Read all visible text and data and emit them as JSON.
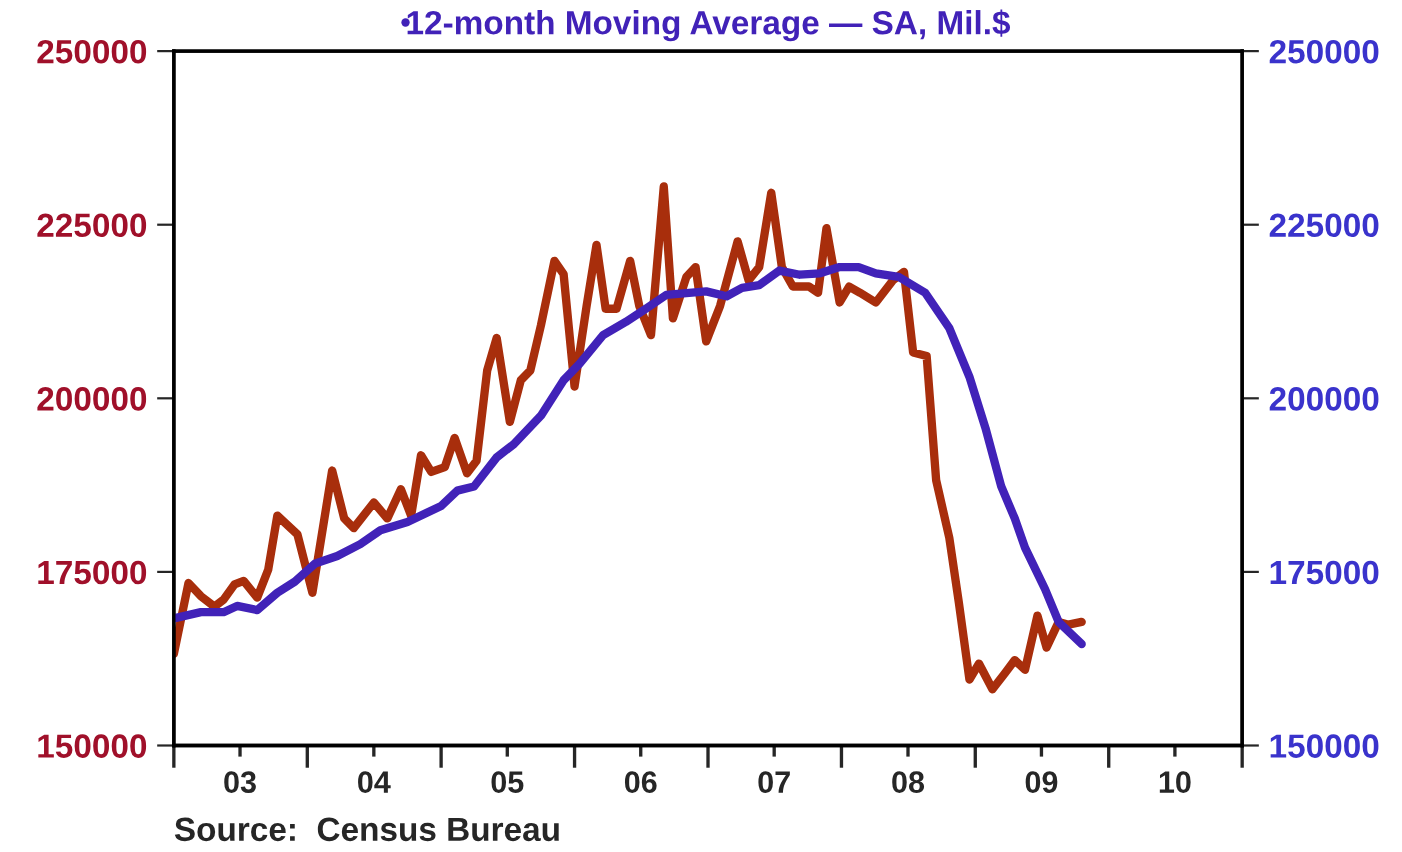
{
  "chart_data": {
    "type": "line",
    "annotations": [
      "Source:  Census Bureau"
    ],
    "xlim": [
      "2003-01-01",
      "2011-01-01"
    ],
    "xticks": [
      {
        "value": "2003-01-01",
        "label": null
      },
      {
        "value": "2003-07-01",
        "label": "03"
      },
      {
        "value": "2004-01-01",
        "label": null
      },
      {
        "value": "2004-07-01",
        "label": "04"
      },
      {
        "value": "2005-01-01",
        "label": null
      },
      {
        "value": "2005-07-01",
        "label": "05"
      },
      {
        "value": "2006-01-01",
        "label": null
      },
      {
        "value": "2006-07-01",
        "label": "06"
      },
      {
        "value": "2007-01-01",
        "label": null
      },
      {
        "value": "2007-07-01",
        "label": "07"
      },
      {
        "value": "2008-01-01",
        "label": null
      },
      {
        "value": "2008-07-01",
        "label": "08"
      },
      {
        "value": "2009-01-01",
        "label": null
      },
      {
        "value": "2009-07-01",
        "label": "09"
      },
      {
        "value": "2010-01-01",
        "label": null
      },
      {
        "value": "2010-07-01",
        "label": "10"
      },
      {
        "value": "2011-01-01",
        "label": null
      }
    ],
    "ylim": [
      150000,
      250000
    ],
    "yticks": [
      150000,
      175000,
      200000,
      225000,
      250000
    ],
    "y2lim": [
      150000,
      250000
    ],
    "y2ticks": [
      150000,
      175000,
      200000,
      225000,
      250000
    ],
    "grid": false,
    "legend": "top",
    "marker": "none",
    "line_style": "solid",
    "series": [
      {
        "color": "#a82e0c",
        "axis": "y",
        "x": [
          "2003-01-01",
          "2003-02-10",
          "2003-03-16",
          "2003-04-22",
          "2003-05-17",
          "2003-06-16",
          "2003-07-11",
          "2003-08-17",
          "2003-09-16",
          "2003-10-11",
          "2003-12-05",
          "2004-01-15",
          "2004-03-09",
          "2004-04-11",
          "2004-05-07",
          "2004-07-01",
          "2004-08-07",
          "2004-09-13",
          "2004-10-11",
          "2004-11-07",
          "2004-12-05",
          "2005-01-11",
          "2005-02-07",
          "2005-03-13",
          "2005-04-08",
          "2005-05-07",
          "2005-06-02",
          "2005-07-08",
          "2005-08-07",
          "2005-09-02",
          "2005-10-01",
          "2005-11-07",
          "2005-12-02",
          "2006-01-01",
          "2006-02-03",
          "2006-03-02",
          "2006-03-27",
          "2006-04-26",
          "2006-06-02",
          "2006-06-27",
          "2006-07-29",
          "2006-09-02",
          "2006-09-27",
          "2006-11-03",
          "2006-11-28",
          "2006-12-27",
          "2007-02-03",
          "2007-03-23",
          "2007-04-22",
          "2007-05-21",
          "2007-06-23",
          "2007-07-22",
          "2007-08-21",
          "2007-10-04",
          "2007-10-29",
          "2007-11-21",
          "2007-12-27",
          "2008-01-22",
          "2008-02-21",
          "2008-04-04",
          "2008-05-21",
          "2008-06-20",
          "2008-07-15",
          "2008-08-21",
          "2008-09-16",
          "2008-10-22",
          "2008-11-17",
          "2008-12-16",
          "2009-01-11",
          "2009-02-17",
          "2009-03-23",
          "2009-04-19",
          "2009-05-17",
          "2009-06-20",
          "2009-07-15",
          "2009-08-17",
          "2009-09-13",
          "2009-10-19"
        ],
        "values": [
          163200,
          173400,
          171500,
          170000,
          171000,
          173200,
          173700,
          171300,
          175300,
          183100,
          180400,
          172000,
          189600,
          182700,
          181300,
          185000,
          182700,
          186900,
          183100,
          191800,
          189400,
          190100,
          194300,
          189200,
          191000,
          204000,
          208700,
          196600,
          202600,
          204000,
          210500,
          219800,
          217900,
          201700,
          213300,
          222100,
          212900,
          212900,
          219800,
          213300,
          209100,
          230500,
          211500,
          217500,
          218900,
          208200,
          213300,
          222600,
          217000,
          218900,
          229600,
          218900,
          216100,
          216100,
          215200,
          224500,
          213800,
          216100,
          215200,
          213800,
          217000,
          218200,
          206600,
          206100,
          188200,
          179900,
          170600,
          159500,
          161800,
          158100,
          160400,
          162300,
          160900,
          168700,
          164100,
          167800,
          167400,
          167800
        ]
      },
      {
        "name": "12-month Moving Average — SA, Mil.$",
        "color": "#4122b8",
        "axis": "y2",
        "x": [
          "2003-01-01",
          "2003-03-16",
          "2003-05-17",
          "2003-06-23",
          "2003-08-17",
          "2003-10-11",
          "2003-11-28",
          "2004-01-22",
          "2004-03-23",
          "2004-05-25",
          "2004-07-19",
          "2004-10-01",
          "2005-01-01",
          "2005-02-14",
          "2005-04-01",
          "2005-06-02",
          "2005-07-19",
          "2005-10-01",
          "2005-12-02",
          "2006-01-15",
          "2006-03-20",
          "2006-05-21",
          "2006-07-15",
          "2006-09-09",
          "2006-12-27",
          "2007-02-21",
          "2007-04-04",
          "2007-05-21",
          "2007-07-15",
          "2007-09-09",
          "2007-11-03",
          "2007-12-27",
          "2008-02-17",
          "2008-04-04",
          "2008-06-05",
          "2008-08-17",
          "2008-10-22",
          "2008-12-16",
          "2009-01-29",
          "2009-03-13",
          "2009-04-19",
          "2009-05-17",
          "2009-07-11",
          "2009-08-17",
          "2009-10-19"
        ],
        "values": [
          168300,
          169200,
          169200,
          170100,
          169500,
          172000,
          173600,
          176200,
          177300,
          179000,
          181000,
          182200,
          184500,
          186700,
          187300,
          191500,
          193400,
          197500,
          202600,
          205000,
          209100,
          211000,
          212900,
          214900,
          215400,
          214700,
          215900,
          216300,
          218400,
          217800,
          218000,
          218900,
          218900,
          218000,
          217500,
          215200,
          210100,
          203100,
          195700,
          187300,
          182700,
          178500,
          172500,
          167800,
          164600
        ]
      }
    ]
  }
}
